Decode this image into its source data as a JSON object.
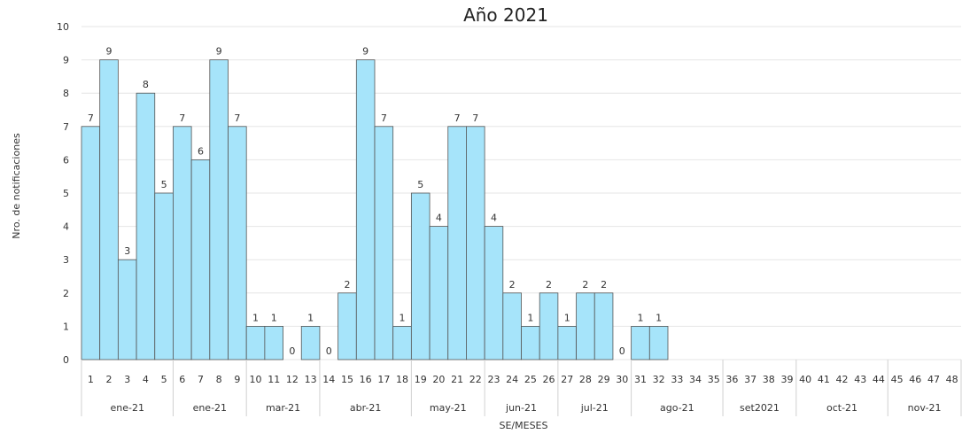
{
  "chart_data": {
    "type": "bar",
    "title": "Año 2021",
    "xlabel": "SE/MESES",
    "ylabel": "Nro. de notificaciones",
    "ylim": [
      0,
      10
    ],
    "yticks": [
      0,
      1,
      2,
      3,
      4,
      5,
      6,
      7,
      8,
      9,
      10
    ],
    "grid": true,
    "bar_color": "#a6e4fa",
    "weeks": [
      "1",
      "2",
      "3",
      "4",
      "5",
      "6",
      "7",
      "8",
      "9",
      "10",
      "11",
      "12",
      "13",
      "14",
      "15",
      "16",
      "17",
      "18",
      "19",
      "20",
      "21",
      "22",
      "23",
      "24",
      "25",
      "26",
      "27",
      "28",
      "29",
      "30",
      "31",
      "32",
      "33",
      "34",
      "35",
      "36",
      "37",
      "38",
      "39",
      "40",
      "41",
      "42",
      "43",
      "44",
      "45",
      "46",
      "47",
      "48"
    ],
    "values": [
      7,
      9,
      3,
      8,
      5,
      7,
      6,
      9,
      7,
      1,
      1,
      0,
      1,
      0,
      2,
      9,
      7,
      1,
      5,
      4,
      7,
      7,
      4,
      2,
      1,
      2,
      1,
      2,
      2,
      0,
      1,
      1,
      null,
      null,
      null,
      null,
      null,
      null,
      null,
      null,
      null,
      null,
      null,
      null,
      null,
      null,
      null,
      null
    ],
    "months": [
      {
        "label": "ene-21",
        "start": 1,
        "end": 5
      },
      {
        "label": "ene-21",
        "start": 6,
        "end": 9
      },
      {
        "label": "mar-21",
        "start": 10,
        "end": 13
      },
      {
        "label": "abr-21",
        "start": 14,
        "end": 18
      },
      {
        "label": "may-21",
        "start": 19,
        "end": 22
      },
      {
        "label": "jun-21",
        "start": 23,
        "end": 26
      },
      {
        "label": "jul-21",
        "start": 27,
        "end": 30
      },
      {
        "label": "ago-21",
        "start": 31,
        "end": 35
      },
      {
        "label": "set2021",
        "start": 36,
        "end": 39
      },
      {
        "label": "oct-21",
        "start": 40,
        "end": 44
      },
      {
        "label": "nov-21",
        "start": 45,
        "end": 48
      }
    ]
  }
}
